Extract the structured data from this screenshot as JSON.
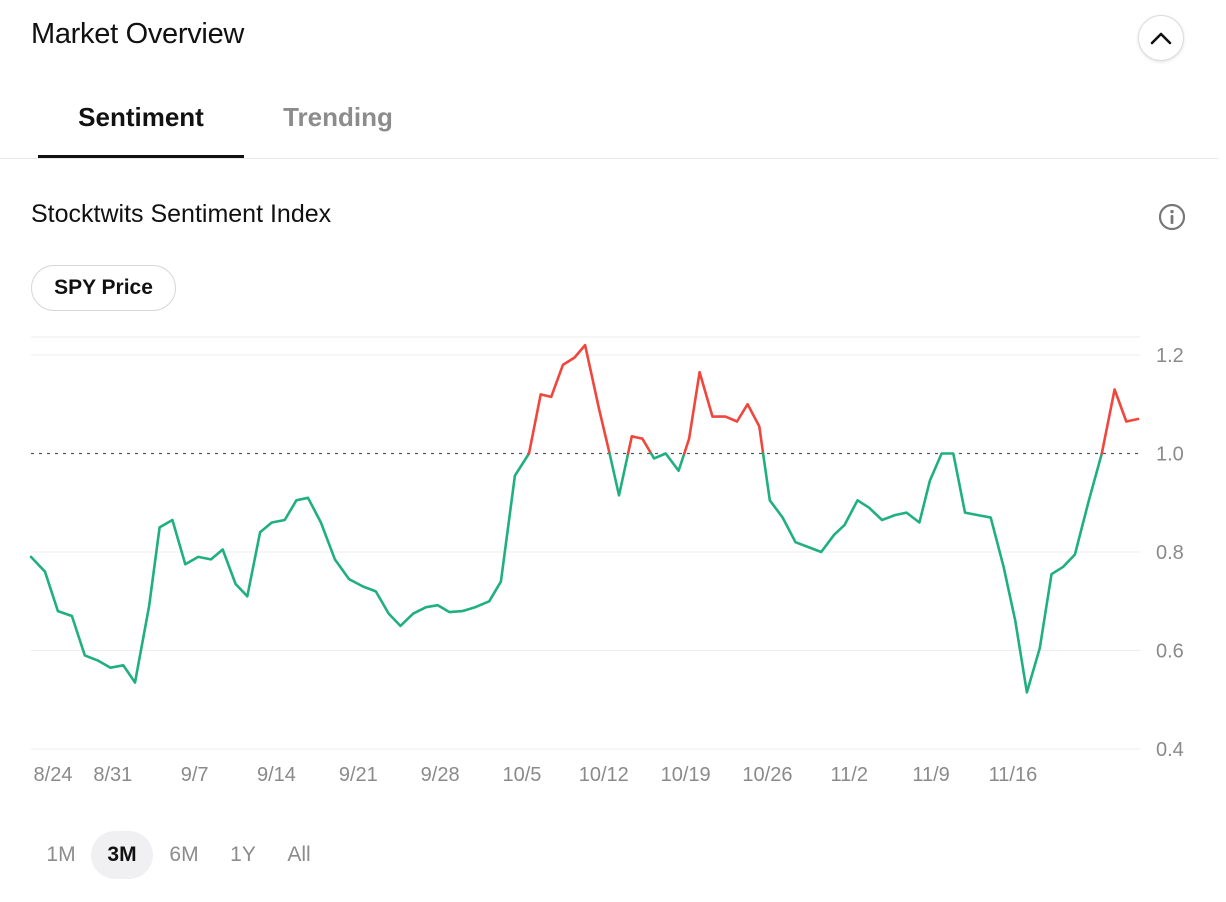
{
  "header": {
    "title": "Market Overview",
    "collapse_icon": "chevron-up-icon"
  },
  "tabs": [
    {
      "label": "Sentiment",
      "active": true
    },
    {
      "label": "Trending",
      "active": false
    }
  ],
  "section": {
    "title": "Stocktwits Sentiment Index",
    "info_icon": "info-icon"
  },
  "toggle": {
    "label": "SPY Price"
  },
  "ranges": [
    {
      "label": "1M",
      "active": false
    },
    {
      "label": "3M",
      "active": true
    },
    {
      "label": "6M",
      "active": false
    },
    {
      "label": "1Y",
      "active": false
    },
    {
      "label": "All",
      "active": false
    }
  ],
  "colors": {
    "above": "#f0463c",
    "below": "#1fb07e",
    "grid": "#ececec",
    "reference": "#555555"
  },
  "chart_data": {
    "type": "line",
    "title": "Stocktwits Sentiment Index",
    "xlabel": "",
    "ylabel": "",
    "ylim": [
      0.4,
      1.2
    ],
    "yticks": [
      1.2,
      1.0,
      0.8,
      0.6,
      0.4
    ],
    "ytick_labels": [
      "1.2",
      "1.0",
      "0.8",
      "0.6",
      "0.4"
    ],
    "reference_line": 1.0,
    "xticks": [
      {
        "label": "8/24",
        "day": 0
      },
      {
        "label": "8/31",
        "day": 7
      },
      {
        "label": "9/7",
        "day": 14
      },
      {
        "label": "9/14",
        "day": 21
      },
      {
        "label": "9/21",
        "day": 28
      },
      {
        "label": "9/28",
        "day": 35
      },
      {
        "label": "10/5",
        "day": 42
      },
      {
        "label": "10/12",
        "day": 49
      },
      {
        "label": "10/19",
        "day": 56
      },
      {
        "label": "10/26",
        "day": 63
      },
      {
        "label": "11/2",
        "day": 70
      },
      {
        "label": "11/9",
        "day": 77
      },
      {
        "label": "11/16",
        "day": 84
      }
    ],
    "series": [
      {
        "points": [
          [
            0,
            0.79
          ],
          [
            1.2,
            0.76
          ],
          [
            2.3,
            0.68
          ],
          [
            3.5,
            0.67
          ],
          [
            4.6,
            0.59
          ],
          [
            5.7,
            0.58
          ],
          [
            6.8,
            0.565
          ],
          [
            7.9,
            0.57
          ],
          [
            8.9,
            0.535
          ],
          [
            10.1,
            0.69
          ],
          [
            11.0,
            0.85
          ],
          [
            12.1,
            0.865
          ],
          [
            13.2,
            0.775
          ],
          [
            14.3,
            0.79
          ],
          [
            15.4,
            0.785
          ],
          [
            16.4,
            0.805
          ],
          [
            17.5,
            0.735
          ],
          [
            18.5,
            0.71
          ],
          [
            19.6,
            0.84
          ],
          [
            20.6,
            0.86
          ],
          [
            21.7,
            0.865
          ],
          [
            22.7,
            0.905
          ],
          [
            23.7,
            0.91
          ],
          [
            24.8,
            0.86
          ],
          [
            26.0,
            0.785
          ],
          [
            27.2,
            0.745
          ],
          [
            28.4,
            0.73
          ],
          [
            29.5,
            0.72
          ],
          [
            30.6,
            0.675
          ],
          [
            31.6,
            0.65
          ],
          [
            32.7,
            0.675
          ],
          [
            33.8,
            0.688
          ],
          [
            34.8,
            0.692
          ],
          [
            35.8,
            0.678
          ],
          [
            36.9,
            0.68
          ],
          [
            38.0,
            0.688
          ],
          [
            39.2,
            0.7
          ],
          [
            40.2,
            0.74
          ],
          [
            41.4,
            0.955
          ],
          [
            42.6,
            1.0
          ],
          [
            43.6,
            1.12
          ],
          [
            44.5,
            1.115
          ],
          [
            45.5,
            1.18
          ],
          [
            46.5,
            1.195
          ],
          [
            47.4,
            1.22
          ],
          [
            48.6,
            1.09
          ],
          [
            49.5,
            1.0
          ],
          [
            50.3,
            0.915
          ],
          [
            51.4,
            1.035
          ],
          [
            52.3,
            1.03
          ],
          [
            53.3,
            0.99
          ],
          [
            54.3,
            1.0
          ],
          [
            55.4,
            0.965
          ],
          [
            56.3,
            1.03
          ],
          [
            57.2,
            1.165
          ],
          [
            58.3,
            1.075
          ],
          [
            59.4,
            1.075
          ],
          [
            60.4,
            1.065
          ],
          [
            61.3,
            1.1
          ],
          [
            62.3,
            1.055
          ],
          [
            63.2,
            0.905
          ],
          [
            64.3,
            0.87
          ],
          [
            65.4,
            0.82
          ],
          [
            66.5,
            0.81
          ],
          [
            67.6,
            0.8
          ],
          [
            68.7,
            0.835
          ],
          [
            69.6,
            0.855
          ],
          [
            70.7,
            0.905
          ],
          [
            71.7,
            0.89
          ],
          [
            72.8,
            0.865
          ],
          [
            73.9,
            0.875
          ],
          [
            74.9,
            0.88
          ],
          [
            76.0,
            0.86
          ],
          [
            76.9,
            0.945
          ],
          [
            77.9,
            1.0
          ],
          [
            78.9,
            1.0
          ],
          [
            79.9,
            0.88
          ],
          [
            81.0,
            0.875
          ],
          [
            82.1,
            0.87
          ],
          [
            83.2,
            0.77
          ],
          [
            84.2,
            0.66
          ],
          [
            85.2,
            0.515
          ],
          [
            86.3,
            0.605
          ],
          [
            87.3,
            0.755
          ],
          [
            88.3,
            0.77
          ],
          [
            89.3,
            0.795
          ],
          [
            90.5,
            0.905
          ],
          [
            91.6,
            1.0
          ],
          [
            92.7,
            1.13
          ],
          [
            93.7,
            1.065
          ],
          [
            94.7,
            1.07
          ]
        ]
      }
    ]
  }
}
